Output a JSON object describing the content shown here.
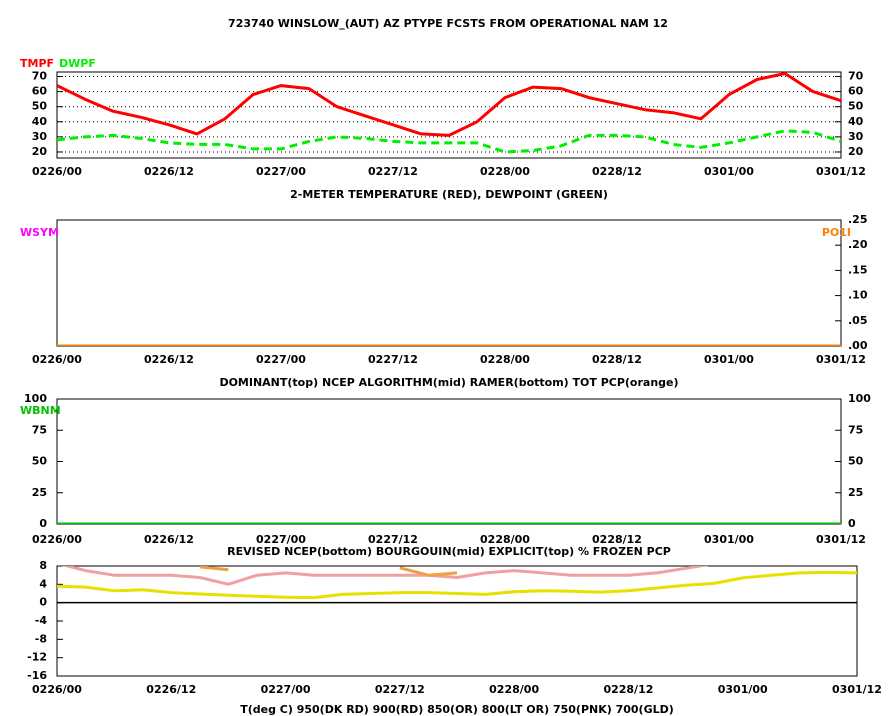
{
  "title": "723740  WINSLOW_(AUT) AZ  PTYPE FCSTS FROM OPERATIONAL NAM 12",
  "chart_data": [
    {
      "type": "line",
      "xlabel": "2-METER TEMPERATURE (RED), DEWPOINT (GREEN)",
      "categories": [
        "0226/00",
        null,
        null,
        null,
        "0226/12",
        null,
        null,
        null,
        "0227/00",
        null,
        null,
        null,
        "0227/12",
        null,
        null,
        null,
        "0228/00",
        null,
        null,
        null,
        "0228/12",
        null,
        null,
        null,
        "0301/00",
        null,
        null,
        null,
        "0301/12"
      ],
      "series": [
        {
          "name": "TMPF",
          "color": "#ff0000",
          "values": [
            64,
            55,
            47,
            43,
            38,
            32,
            42,
            58,
            64,
            62,
            50,
            44,
            38,
            32,
            31,
            40,
            56,
            63,
            62,
            56,
            52,
            48,
            46,
            42,
            58,
            68,
            72,
            60,
            54
          ]
        },
        {
          "name": "DWPF",
          "color": "#00ee00",
          "dash": true,
          "values": [
            28,
            30,
            31,
            29,
            26,
            25,
            25,
            22,
            22,
            27,
            30,
            29,
            27,
            26,
            26,
            26,
            20,
            21,
            24,
            31,
            31,
            30,
            25,
            23,
            26,
            30,
            34,
            33,
            27
          ]
        }
      ],
      "ylim": [
        16,
        73
      ],
      "yticks": [
        20,
        30,
        40,
        50,
        60,
        70
      ],
      "y2lim": [
        16,
        73
      ],
      "y2ticks": [
        20,
        30,
        40,
        50,
        60,
        70
      ],
      "grid": true
    },
    {
      "type": "line",
      "xlabel": "DOMINANT(top) NCEP ALGORITHM(mid) RAMER(bottom)   TOT PCP(orange)",
      "categories": [
        "0226/00",
        null,
        null,
        null,
        "0226/12",
        null,
        null,
        null,
        "0227/00",
        null,
        null,
        null,
        "0227/12",
        null,
        null,
        null,
        "0228/00",
        null,
        null,
        null,
        "0228/12",
        null,
        null,
        null,
        "0301/00",
        null,
        null,
        null,
        "0301/12"
      ],
      "series": [
        {
          "name": "WSYM",
          "color": "#ff00ff",
          "values": [
            null,
            null,
            null,
            null,
            null,
            null,
            null,
            null,
            null,
            null,
            null,
            null,
            null,
            null,
            null,
            null,
            null,
            null,
            null,
            null,
            null,
            null,
            null,
            null,
            null,
            null,
            null,
            null,
            null
          ]
        },
        {
          "name": "PO1I",
          "color": "#ff8000",
          "axis": "y2",
          "values": [
            0,
            0,
            0,
            0,
            0,
            0,
            0,
            0,
            0,
            0,
            0,
            0,
            0,
            0,
            0,
            0,
            0,
            0,
            0,
            0,
            0,
            0,
            0,
            0,
            0,
            0,
            0,
            0,
            0
          ]
        }
      ],
      "y2lim": [
        0,
        0.25
      ],
      "y2ticks": [
        {
          "value": 0,
          "label": ".00"
        },
        {
          "value": 0.05,
          "label": ".05"
        },
        {
          "value": 0.1,
          "label": ".10"
        },
        {
          "value": 0.15,
          "label": ".15"
        },
        {
          "value": 0.2,
          "label": ".20"
        },
        {
          "value": 0.25,
          "label": ".25"
        }
      ],
      "grid": false
    },
    {
      "type": "line",
      "xlabel": "REVISED NCEP(bottom) BOURGOUIN(mid) EXPLICIT(top)   % FROZEN PCP",
      "categories": [
        "0226/00",
        null,
        null,
        null,
        "0226/12",
        null,
        null,
        null,
        "0227/00",
        null,
        null,
        null,
        "0227/12",
        null,
        null,
        null,
        "0228/00",
        null,
        null,
        null,
        "0228/12",
        null,
        null,
        null,
        "0301/00",
        null,
        null,
        null,
        "0301/12"
      ],
      "series": [
        {
          "name": "WBNM",
          "color": "#00c000",
          "values": [
            0,
            0,
            0,
            0,
            0,
            0,
            0,
            0,
            0,
            0,
            0,
            0,
            0,
            0,
            0,
            0,
            0,
            0,
            0,
            0,
            0,
            0,
            0,
            0,
            0,
            0,
            0,
            0,
            0
          ]
        }
      ],
      "ylim": [
        0,
        100
      ],
      "yticks": [
        0,
        25,
        50,
        75,
        100
      ],
      "y2lim": [
        0,
        100
      ],
      "y2ticks": [
        0,
        25,
        50,
        75,
        100
      ],
      "grid": false
    },
    {
      "type": "line",
      "xlabel": "T(deg C)   950(DK RD) 900(RD) 850(OR) 800(LT OR) 750(PNK) 700(GLD)",
      "categories": [
        "0226/00",
        null,
        null,
        null,
        "0226/12",
        null,
        null,
        null,
        "0227/00",
        null,
        null,
        null,
        "0227/12",
        null,
        null,
        null,
        "0228/00",
        null,
        null,
        null,
        "0228/12",
        null,
        null,
        null,
        "0301/00",
        null,
        null,
        null,
        "0301/12"
      ],
      "series": [
        {
          "color": "#f0a0a0",
          "values": [
            8.6,
            7,
            6,
            6,
            6,
            5.5,
            4,
            6,
            6.5,
            6,
            6,
            6,
            6,
            6,
            5.5,
            6.5,
            7,
            6.5,
            6,
            6,
            6,
            6.5,
            7.5,
            8.5,
            null,
            null,
            null,
            null,
            null
          ]
        },
        {
          "color": "#f0a040",
          "values": [
            null,
            null,
            null,
            null,
            null,
            7.8,
            7.2,
            null,
            null,
            null,
            null,
            null,
            7.6,
            6,
            6.5,
            null,
            null,
            null,
            null,
            null,
            null,
            null,
            null,
            null,
            null,
            null,
            null,
            null,
            null
          ]
        },
        {
          "color": "#e8e000",
          "values": [
            3.6,
            3.4,
            2.6,
            2.8,
            2.2,
            1.9,
            1.6,
            1.4,
            1.2,
            1.1,
            1.8,
            2,
            2.2,
            2.2,
            2,
            1.8,
            2.4,
            2.6,
            2.5,
            2.3,
            2.6,
            3.2,
            3.8,
            4.2,
            5.4,
            6,
            6.5,
            6.6,
            6.5
          ]
        }
      ],
      "ylim": [
        -16,
        8
      ],
      "yticks": [
        -16,
        -12,
        -8,
        -4,
        0,
        4,
        8
      ],
      "grid": false
    }
  ]
}
